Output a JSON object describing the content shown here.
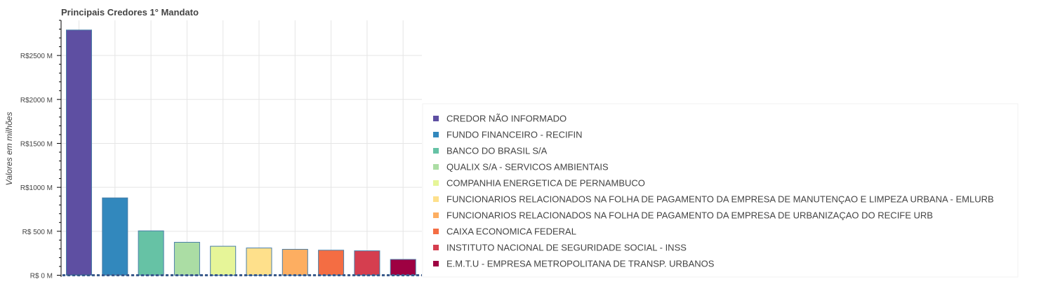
{
  "chart_data": {
    "type": "bar",
    "title": "Principais Credores 1° Mandato",
    "ylabel": "Valores em milhões",
    "xlabel": "",
    "ylim": [
      -20,
      2900
    ],
    "y_ticks": [
      {
        "value": 0,
        "label": "R$    0 M"
      },
      {
        "value": 500,
        "label": "R$ 500 M"
      },
      {
        "value": 1000,
        "label": "R$1000 M"
      },
      {
        "value": 1500,
        "label": "R$1500 M"
      },
      {
        "value": 2000,
        "label": "R$2000 M"
      },
      {
        "value": 2500,
        "label": "R$2500 M"
      }
    ],
    "grid": true,
    "legend_position": "bottom-right",
    "categories": [
      "CREDOR NÃO INFORMADO",
      "FUNDO FINANCEIRO - RECIFIN",
      "BANCO DO BRASIL S/A",
      "QUALIX S/A - SERVICOS AMBIENTAIS",
      "COMPANHIA ENERGETICA DE PERNAMBUCO",
      "FUNCIONARIOS RELACIONADOS NA FOLHA DE PAGAMENTO DA EMPRESA DE MANUTENÇAO E LIMPEZA URBANA - EMLURB",
      "FUNCIONARIOS RELACIONADOS NA FOLHA DE PAGAMENTO DA EMPRESA DE URBANIZAÇAO DO RECIFE URB",
      "CAIXA ECONOMICA FEDERAL",
      "INSTITUTO NACIONAL DE SEGURIDADE SOCIAL - INSS",
      "E.M.T.U - EMPRESA METROPOLITANA DE TRANSP. URBANOS"
    ],
    "values": [
      2790,
      880,
      505,
      375,
      330,
      310,
      295,
      285,
      278,
      180
    ],
    "bar_colors": [
      "#5e4fa2",
      "#3288bd",
      "#66c2a5",
      "#abdda4",
      "#e6f598",
      "#fee08b",
      "#fdae61",
      "#f46d43",
      "#d53e4f",
      "#9e0142"
    ],
    "legend_colors": [
      "#5e4fa2",
      "#3288bd",
      "#66c2a5",
      "#abdda4",
      "#e6f598",
      "#fee08b",
      "#fdae61",
      "#f46d43",
      "#d53e4f",
      "#9e0142"
    ]
  }
}
